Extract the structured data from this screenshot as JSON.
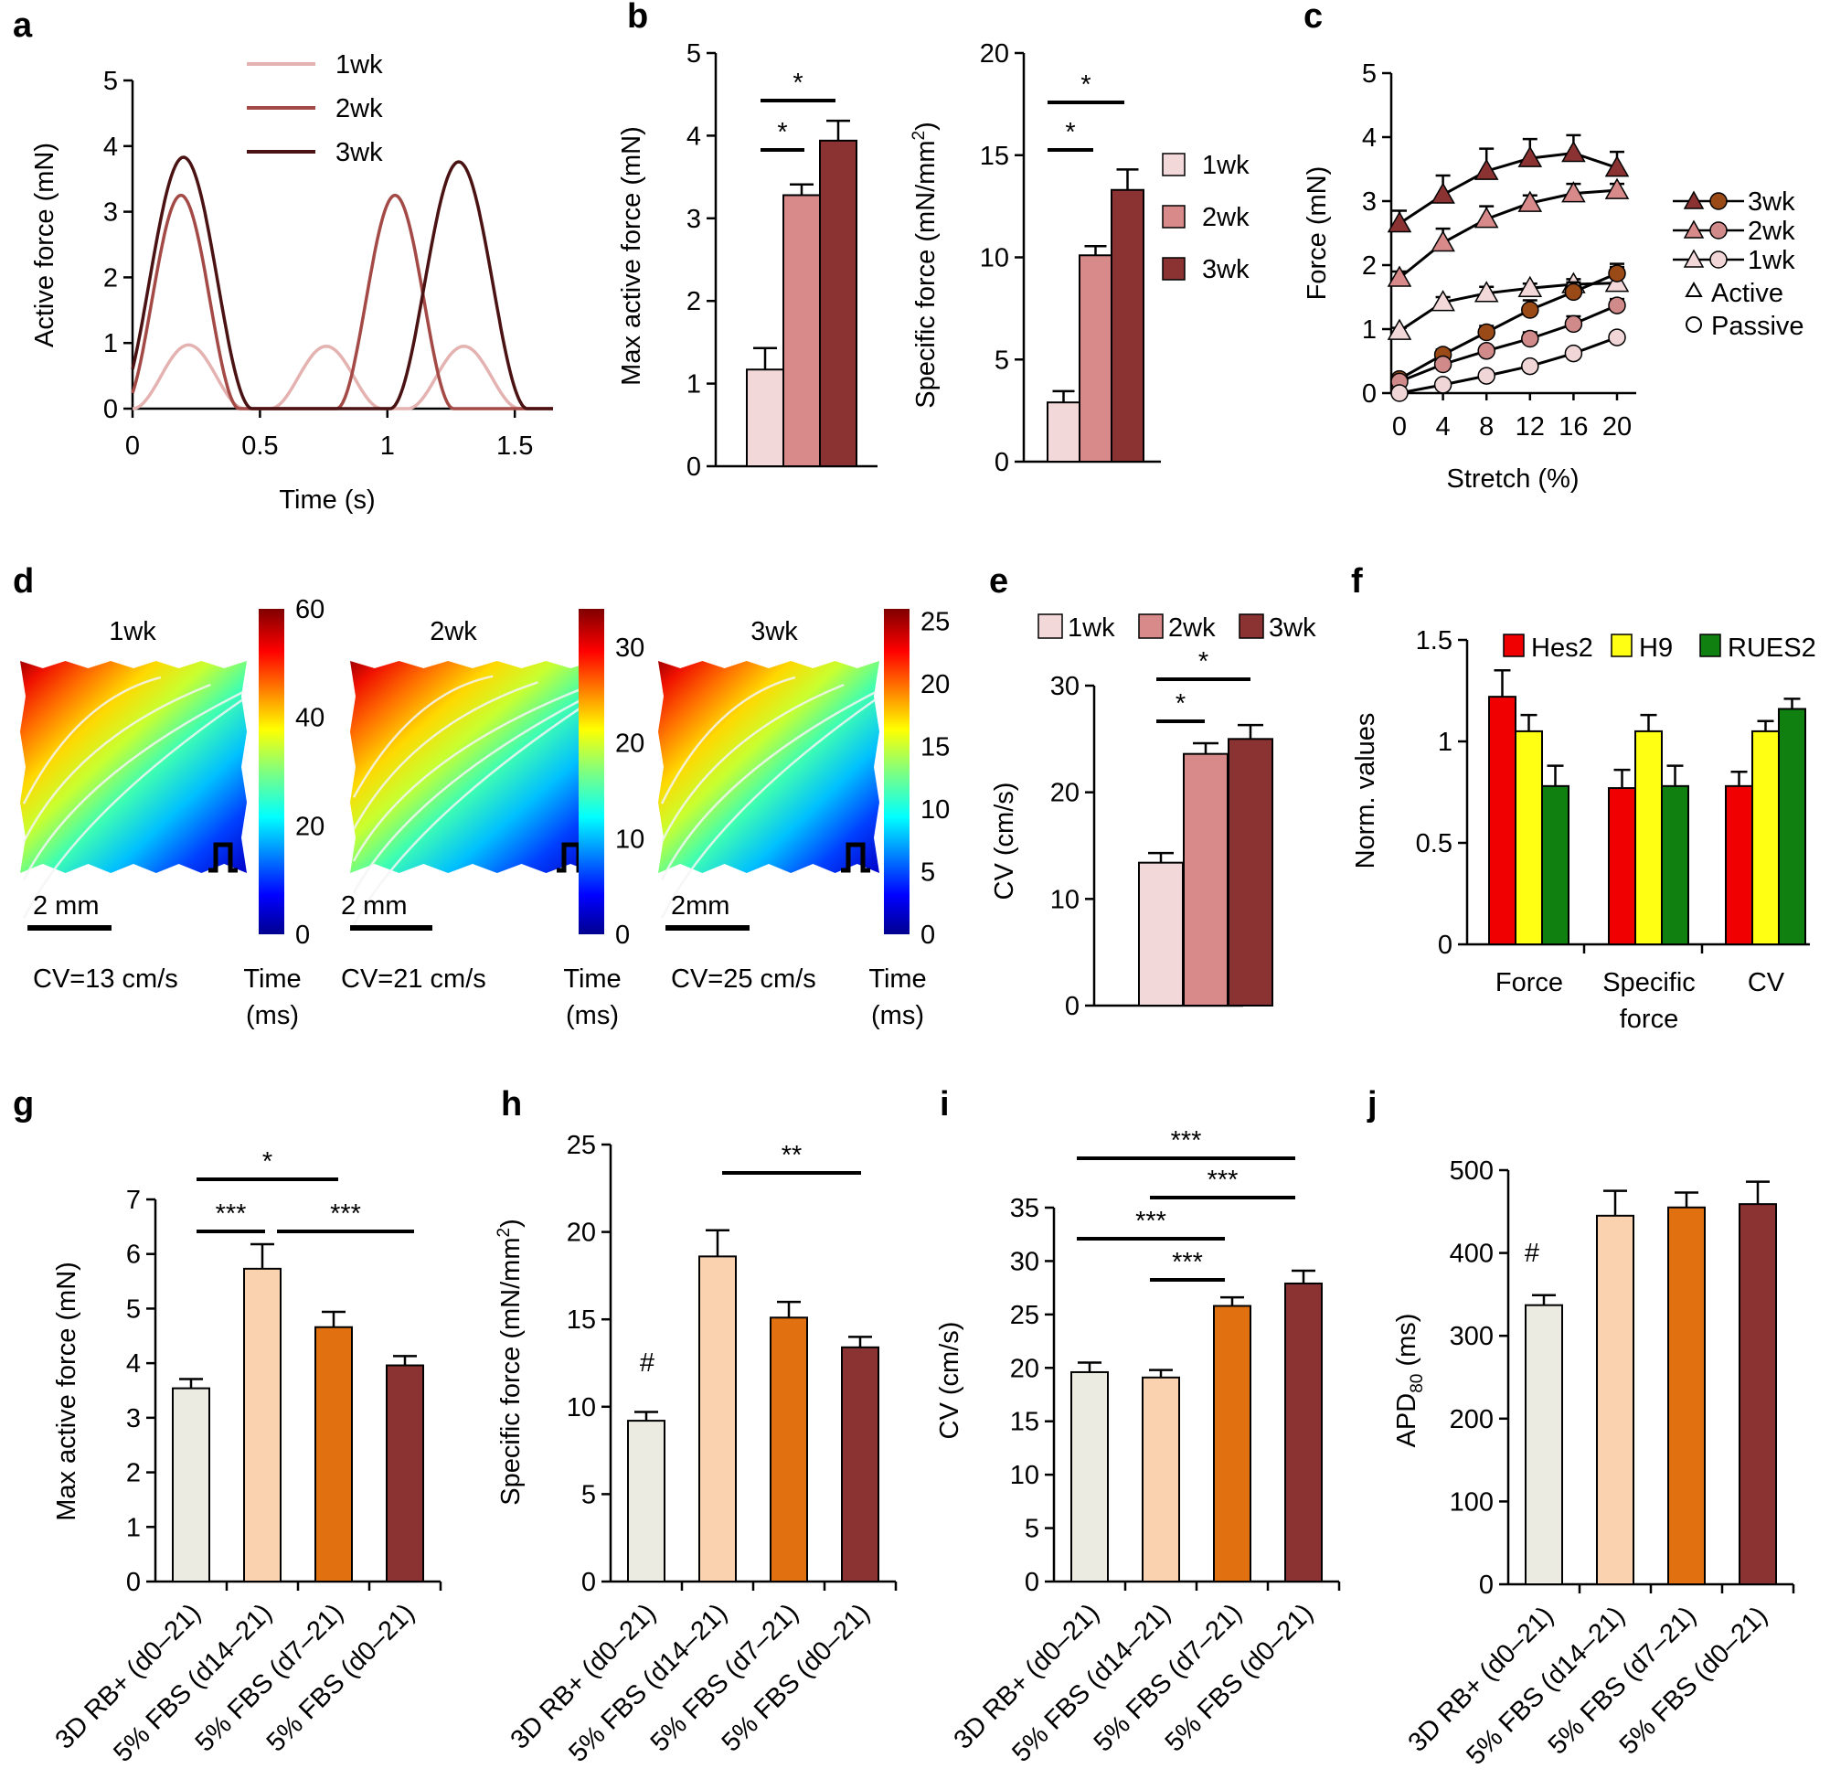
{
  "colors": {
    "wk1": "#f2d8d8",
    "wk2": "#d8898a",
    "wk3": "#8b3232",
    "wk1_line": "#e4b2b0",
    "wk2_line": "#a34a46",
    "wk3_line": "#4a1212",
    "hes2": "#f00000",
    "h9": "#ffff14",
    "rues2": "#108010",
    "rb3d": "#ecebe1",
    "fbs_d14": "#fbd2b0",
    "fbs_d7": "#e07010",
    "fbs_d0": "#8b3232",
    "passive3": "#9a4a16",
    "passive2": "#d08a8a",
    "passive1": "#f0d6d6"
  },
  "panel_labels": [
    "a",
    "b",
    "c",
    "d",
    "e",
    "f",
    "g",
    "h",
    "i",
    "j"
  ],
  "chart_data": [
    {
      "panel": "a",
      "type": "line",
      "xlabel": "Time (s)",
      "ylabel": "Active force (mN)",
      "xlim": [
        0,
        1.65
      ],
      "ylim": [
        0,
        5
      ],
      "xticks": [
        "0",
        "0.5",
        "1",
        "1.5"
      ],
      "yticks": [
        "0",
        "1",
        "2",
        "3",
        "4",
        "5"
      ],
      "series": [
        {
          "name": "1wk",
          "peaks": [
            [
              0.22,
              0.97
            ],
            [
              0.76,
              0.95
            ],
            [
              1.3,
              0.95
            ]
          ]
        },
        {
          "name": "2wk",
          "peaks": [
            [
              0.19,
              3.25
            ],
            [
              1.03,
              3.25
            ]
          ]
        },
        {
          "name": "3wk",
          "peaks": [
            [
              0.2,
              3.83
            ],
            [
              1.28,
              3.76
            ]
          ]
        }
      ]
    },
    {
      "panel": "b-left",
      "type": "bar",
      "ylabel": "Max active force (mN)",
      "ylim": [
        0,
        5
      ],
      "yticks": [
        "0",
        "1",
        "2",
        "3",
        "4",
        "5"
      ],
      "categories": [
        "1wk",
        "2wk",
        "3wk"
      ],
      "values": [
        1.17,
        3.28,
        3.94
      ],
      "errors": [
        0.26,
        0.13,
        0.24
      ],
      "sig": [
        "*",
        "*"
      ]
    },
    {
      "panel": "b-right",
      "type": "bar",
      "ylabel_pre": "Specific force (mN/mm",
      "ylabel_sup": "2",
      "ylabel_post": ")",
      "ylim": [
        0,
        20
      ],
      "yticks": [
        "0",
        "5",
        "10",
        "15",
        "20"
      ],
      "categories": [
        "1wk",
        "2wk",
        "3wk"
      ],
      "values": [
        2.9,
        10.1,
        13.3
      ],
      "errors": [
        0.55,
        0.45,
        1.0
      ],
      "sig": [
        "*",
        "*"
      ],
      "legend": [
        "1wk",
        "2wk",
        "3wk"
      ]
    },
    {
      "panel": "c",
      "type": "line",
      "xlabel": "Stretch (%)",
      "ylabel": "Force (mN)",
      "x": [
        0,
        4,
        8,
        12,
        16,
        20
      ],
      "xlim": [
        -0.5,
        21
      ],
      "ylim": [
        0,
        5
      ],
      "xticks": [
        "0",
        "4",
        "8",
        "12",
        "16",
        "20"
      ],
      "yticks": [
        "0",
        "1",
        "2",
        "3",
        "4",
        "5"
      ],
      "series": [
        {
          "name": "3wk active",
          "values": [
            2.65,
            3.1,
            3.47,
            3.67,
            3.75,
            3.52
          ],
          "errors": [
            0.2,
            0.3,
            0.35,
            0.3,
            0.28,
            0.25
          ]
        },
        {
          "name": "2wk active",
          "values": [
            1.8,
            2.35,
            2.72,
            2.97,
            3.12,
            3.17
          ],
          "errors": [
            0.1,
            0.22,
            0.2,
            0.12,
            0.15,
            0.1
          ]
        },
        {
          "name": "1wk active",
          "values": [
            0.97,
            1.42,
            1.56,
            1.64,
            1.7,
            1.72
          ],
          "errors": [
            0.05,
            0.08,
            0.1,
            0.07,
            0.08,
            0.25
          ]
        },
        {
          "name": "3wk passive",
          "values": [
            0.22,
            0.6,
            0.95,
            1.3,
            1.58,
            1.87
          ],
          "errors": [
            0.05,
            0.08,
            0.1,
            0.15,
            0.15,
            0.15
          ]
        },
        {
          "name": "2wk passive",
          "values": [
            0.18,
            0.45,
            0.66,
            0.85,
            1.08,
            1.37
          ],
          "errors": [
            0.04,
            0.05,
            0.06,
            0.1,
            0.12,
            0.1
          ]
        },
        {
          "name": "1wk passive",
          "values": [
            0.0,
            0.13,
            0.27,
            0.42,
            0.62,
            0.87
          ],
          "errors": [
            0.02,
            0.03,
            0.04,
            0.05,
            0.06,
            0.07
          ]
        }
      ],
      "legend": [
        "3wk",
        "2wk",
        "1wk",
        "Active",
        "Passive"
      ]
    },
    {
      "panel": "d",
      "type": "heatmap",
      "maps": [
        {
          "title": "1wk",
          "scale": "2 mm",
          "cv": "CV=13 cm/s",
          "ticks": [
            "0",
            "20",
            "40",
            "60"
          ],
          "max": 60
        },
        {
          "title": "2wk",
          "scale": "2  mm",
          "cv": "CV=21 cm/s",
          "ticks": [
            "0",
            "10",
            "20",
            "30"
          ],
          "max": 34
        },
        {
          "title": "3wk",
          "scale": "2mm",
          "cv": "CV=25 cm/s",
          "ticks": [
            "0",
            "5",
            "10",
            "15",
            "20",
            "25"
          ],
          "max": 26
        }
      ],
      "colorbar_label": [
        "Time",
        "(ms)"
      ]
    },
    {
      "panel": "e",
      "type": "bar",
      "ylabel": "CV (cm/s)",
      "ylim": [
        0,
        30
      ],
      "yticks": [
        "0",
        "10",
        "20",
        "30"
      ],
      "categories": [
        "1wk",
        "2wk",
        "3wk"
      ],
      "values": [
        13.4,
        23.6,
        25.0
      ],
      "errors": [
        0.9,
        1.0,
        1.3
      ],
      "sig": [
        "*",
        "*"
      ],
      "legend": [
        "1wk",
        "2wk",
        "3wk"
      ]
    },
    {
      "panel": "f",
      "type": "bar",
      "ylabel": "Norm. values",
      "ylim": [
        0,
        1.5
      ],
      "yticks": [
        "0",
        "0.5",
        "1",
        "1.5"
      ],
      "categories": [
        [
          "Force"
        ],
        [
          "Specific",
          "force"
        ],
        [
          "CV"
        ]
      ],
      "series": [
        {
          "name": "Hes2",
          "values": [
            1.22,
            0.77,
            0.78
          ],
          "errors": [
            0.13,
            0.09,
            0.07
          ]
        },
        {
          "name": "H9",
          "values": [
            1.05,
            1.05,
            1.05
          ],
          "errors": [
            0.08,
            0.08,
            0.05
          ]
        },
        {
          "name": "RUES2",
          "values": [
            0.78,
            0.78,
            1.16
          ],
          "errors": [
            0.1,
            0.1,
            0.05
          ]
        }
      ]
    },
    {
      "panel": "g",
      "type": "bar",
      "ylabel": "Max active force (mN)",
      "ylim": [
        0,
        7
      ],
      "yticks": [
        "0",
        "1",
        "2",
        "3",
        "4",
        "5",
        "6",
        "7"
      ],
      "categories": [
        "3D RB+ (d0–21)",
        "5% FBS (d14–21)",
        "5% FBS (d7–21)",
        "5% FBS (d0–21)"
      ],
      "values": [
        3.54,
        5.73,
        4.66,
        3.96
      ],
      "errors": [
        0.17,
        0.45,
        0.28,
        0.17
      ],
      "sig": [
        "*",
        "***",
        "***"
      ]
    },
    {
      "panel": "h",
      "type": "bar",
      "ylabel_pre": "Specific force (mN/mm",
      "ylabel_sup": "2",
      "ylabel_post": ")",
      "ylim": [
        0,
        25
      ],
      "yticks": [
        "0",
        "5",
        "10",
        "15",
        "20",
        "25"
      ],
      "categories": [
        "3D RB+ (d0–21)",
        "5% FBS (d14–21)",
        "5% FBS (d7–21)",
        "5% FBS (d0–21)"
      ],
      "values": [
        9.2,
        18.6,
        15.1,
        13.4
      ],
      "errors": [
        0.5,
        1.5,
        0.9,
        0.6
      ],
      "sig": [
        "**"
      ],
      "annotation": "#"
    },
    {
      "panel": "i",
      "type": "bar",
      "ylabel": "CV (cm/s)",
      "ylim": [
        0,
        35
      ],
      "yticks": [
        "0",
        "5",
        "10",
        "15",
        "20",
        "25",
        "30",
        "35"
      ],
      "categories": [
        "3D RB+ (d0–21)",
        "5% FBS (d14–21)",
        "5% FBS (d7–21)",
        "5% FBS (d0–21)"
      ],
      "values": [
        19.6,
        19.1,
        25.8,
        27.9
      ],
      "errors": [
        0.9,
        0.7,
        0.8,
        1.2
      ],
      "sig": [
        "***",
        "***",
        "***",
        "***"
      ]
    },
    {
      "panel": "j",
      "type": "bar",
      "ylabel_pre": "APD",
      "ylabel_sub": "80",
      "ylabel_post": " (ms)",
      "ylim": [
        0,
        500
      ],
      "yticks": [
        "0",
        "100",
        "200",
        "300",
        "400",
        "500"
      ],
      "categories": [
        "3D RB+ (d0–21)",
        "5% FBS (d14–21)",
        "5% FBS (d7–21)",
        "5% FBS (d0–21)"
      ],
      "values": [
        337,
        445,
        455,
        459
      ],
      "errors": [
        12,
        30,
        18,
        27
      ],
      "annotation": "#"
    }
  ]
}
